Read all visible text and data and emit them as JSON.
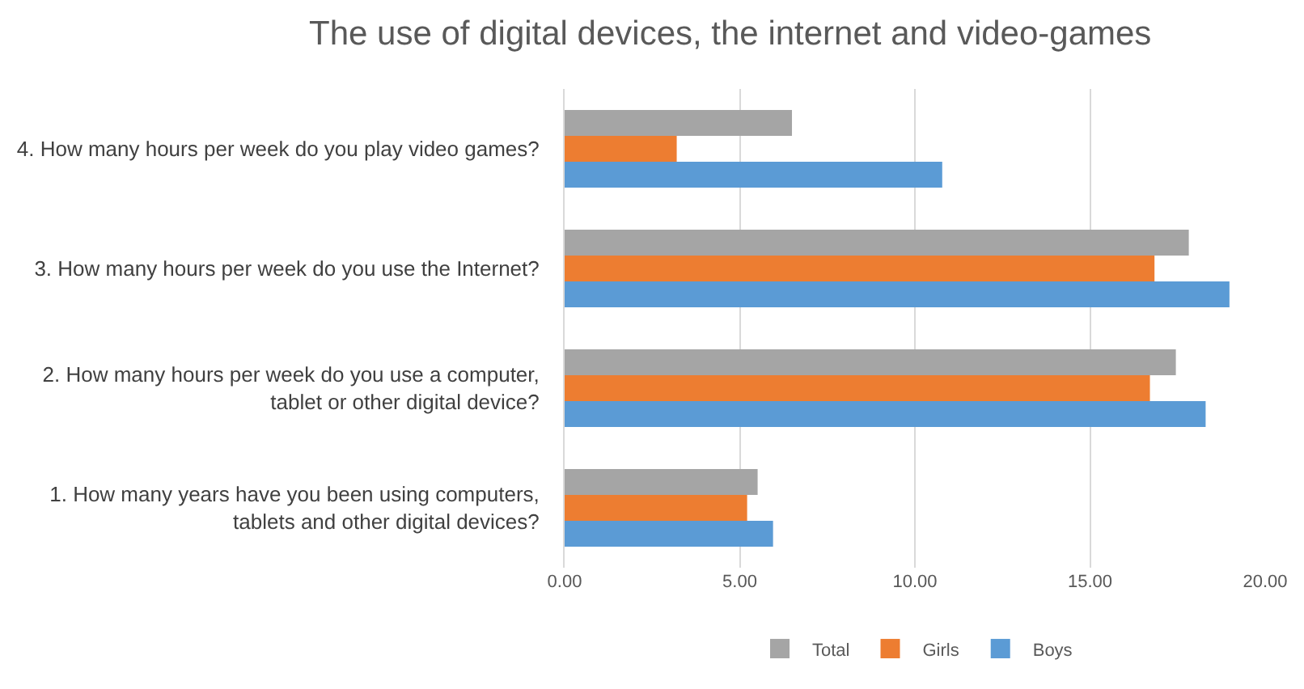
{
  "chart_data": {
    "type": "bar",
    "orientation": "horizontal",
    "title": "The use of digital devices, the internet and video-games",
    "categories": [
      "4. How many hours per week do you play video games?",
      "3. How many hours per week do you use the Internet?",
      "2. How many hours per week do you use a computer,\ntablet or other digital device?",
      "1. How many years have you been using computers,\ntablets and other digital devices?"
    ],
    "series": [
      {
        "name": "Total",
        "color": "#a5a5a5",
        "values": [
          6.49,
          17.82,
          17.45,
          5.51
        ]
      },
      {
        "name": "Girls",
        "color": "#ed7d31",
        "values": [
          3.2,
          16.84,
          16.71,
          5.21
        ]
      },
      {
        "name": "Boys",
        "color": "#5b9bd5",
        "values": [
          10.78,
          18.98,
          18.3,
          5.95
        ]
      }
    ],
    "xlim": [
      0,
      20
    ],
    "xticks": [
      {
        "value": 0,
        "label": "0.00"
      },
      {
        "value": 5,
        "label": "5.00"
      },
      {
        "value": 10,
        "label": "10.00"
      },
      {
        "value": 15,
        "label": "15.00"
      },
      {
        "value": 20,
        "label": "20.00"
      }
    ],
    "grid": "x",
    "legend": "bottom"
  }
}
